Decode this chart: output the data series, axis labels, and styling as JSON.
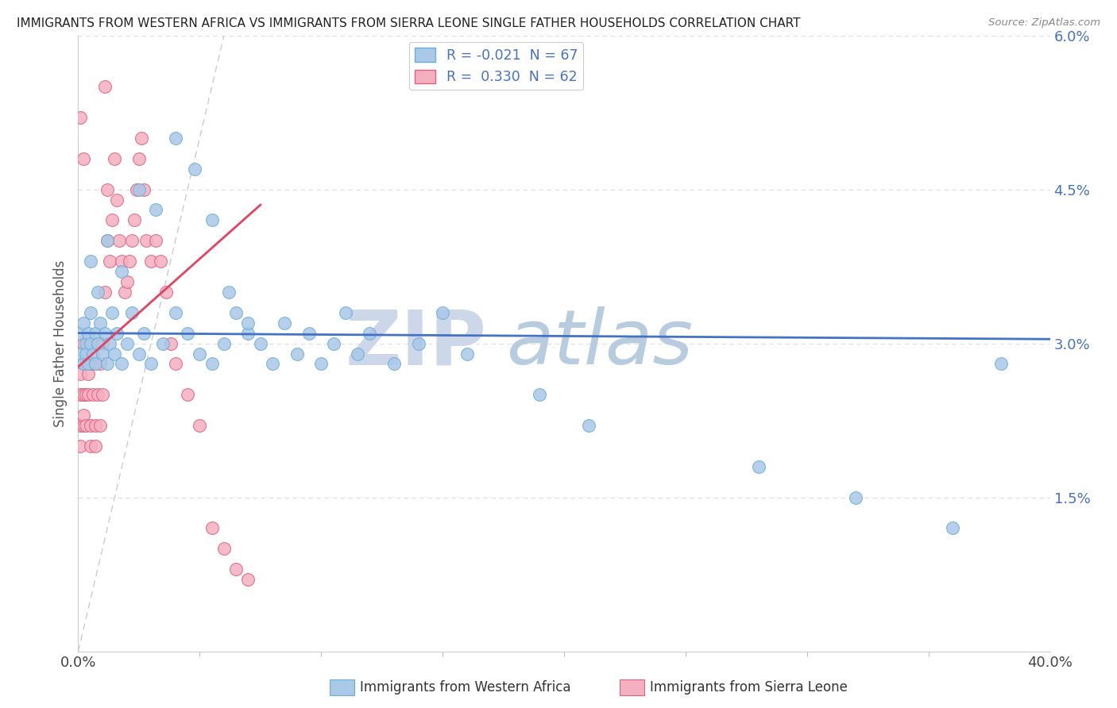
{
  "title": "IMMIGRANTS FROM WESTERN AFRICA VS IMMIGRANTS FROM SIERRA LEONE SINGLE FATHER HOUSEHOLDS CORRELATION CHART",
  "source": "Source: ZipAtlas.com",
  "ylabel": "Single Father Households",
  "xmin": 0.0,
  "xmax": 0.4,
  "ymin": 0.0,
  "ymax": 0.06,
  "yticks": [
    0.0,
    0.015,
    0.03,
    0.045,
    0.06
  ],
  "series1_color": "#aac8e8",
  "series1_edge": "#6aaed6",
  "series2_color": "#f4b0c0",
  "series2_edge": "#e06080",
  "trendline1_color": "#4472c4",
  "trendline2_color": "#e84060",
  "diagonal_color": "#cccccc",
  "watermark_zip_color": "#ccd8ea",
  "watermark_atlas_color": "#b8cce0",
  "background_color": "#ffffff",
  "grid_color": "#dddddd",
  "legend1_label": "R = -0.021  N = 67",
  "legend2_label": "R =  0.330  N = 62",
  "bottom_label1": "Immigrants from Western Africa",
  "bottom_label2": "Immigrants from Sierra Leone",
  "right_ytick_labels": [
    "",
    "1.5%",
    "3.0%",
    "4.5%",
    "6.0%"
  ],
  "wa_x": [
    0.001,
    0.001,
    0.002,
    0.002,
    0.003,
    0.003,
    0.004,
    0.004,
    0.005,
    0.005,
    0.006,
    0.007,
    0.007,
    0.008,
    0.009,
    0.01,
    0.011,
    0.012,
    0.013,
    0.014,
    0.015,
    0.016,
    0.018,
    0.02,
    0.022,
    0.025,
    0.027,
    0.03,
    0.035,
    0.04,
    0.045,
    0.05,
    0.055,
    0.06,
    0.065,
    0.07,
    0.075,
    0.08,
    0.085,
    0.09,
    0.095,
    0.1,
    0.105,
    0.11,
    0.115,
    0.12,
    0.13,
    0.14,
    0.15,
    0.16,
    0.005,
    0.008,
    0.012,
    0.018,
    0.025,
    0.032,
    0.04,
    0.048,
    0.055,
    0.062,
    0.07,
    0.19,
    0.21,
    0.28,
    0.32,
    0.36,
    0.38
  ],
  "wa_y": [
    0.029,
    0.031,
    0.028,
    0.032,
    0.03,
    0.029,
    0.031,
    0.028,
    0.03,
    0.033,
    0.029,
    0.031,
    0.028,
    0.03,
    0.032,
    0.029,
    0.031,
    0.028,
    0.03,
    0.033,
    0.029,
    0.031,
    0.028,
    0.03,
    0.033,
    0.029,
    0.031,
    0.028,
    0.03,
    0.033,
    0.031,
    0.029,
    0.028,
    0.03,
    0.033,
    0.031,
    0.03,
    0.028,
    0.032,
    0.029,
    0.031,
    0.028,
    0.03,
    0.033,
    0.029,
    0.031,
    0.028,
    0.03,
    0.033,
    0.029,
    0.038,
    0.035,
    0.04,
    0.037,
    0.045,
    0.043,
    0.05,
    0.047,
    0.042,
    0.035,
    0.032,
    0.025,
    0.022,
    0.018,
    0.015,
    0.012,
    0.028
  ],
  "sl_x": [
    0.001,
    0.001,
    0.001,
    0.001,
    0.002,
    0.002,
    0.002,
    0.002,
    0.003,
    0.003,
    0.003,
    0.004,
    0.004,
    0.004,
    0.005,
    0.005,
    0.005,
    0.006,
    0.006,
    0.007,
    0.007,
    0.007,
    0.008,
    0.008,
    0.009,
    0.009,
    0.01,
    0.01,
    0.011,
    0.011,
    0.012,
    0.012,
    0.013,
    0.014,
    0.015,
    0.016,
    0.017,
    0.018,
    0.019,
    0.02,
    0.021,
    0.022,
    0.023,
    0.024,
    0.025,
    0.026,
    0.027,
    0.028,
    0.03,
    0.032,
    0.034,
    0.036,
    0.038,
    0.04,
    0.045,
    0.05,
    0.055,
    0.06,
    0.065,
    0.07,
    0.001,
    0.002
  ],
  "sl_y": [
    0.025,
    0.027,
    0.022,
    0.02,
    0.03,
    0.022,
    0.025,
    0.023,
    0.028,
    0.025,
    0.022,
    0.027,
    0.03,
    0.025,
    0.028,
    0.022,
    0.02,
    0.03,
    0.025,
    0.028,
    0.022,
    0.02,
    0.03,
    0.025,
    0.028,
    0.022,
    0.03,
    0.025,
    0.055,
    0.035,
    0.04,
    0.045,
    0.038,
    0.042,
    0.048,
    0.044,
    0.04,
    0.038,
    0.035,
    0.036,
    0.038,
    0.04,
    0.042,
    0.045,
    0.048,
    0.05,
    0.045,
    0.04,
    0.038,
    0.04,
    0.038,
    0.035,
    0.03,
    0.028,
    0.025,
    0.022,
    0.012,
    0.01,
    0.008,
    0.007,
    0.052,
    0.048
  ]
}
